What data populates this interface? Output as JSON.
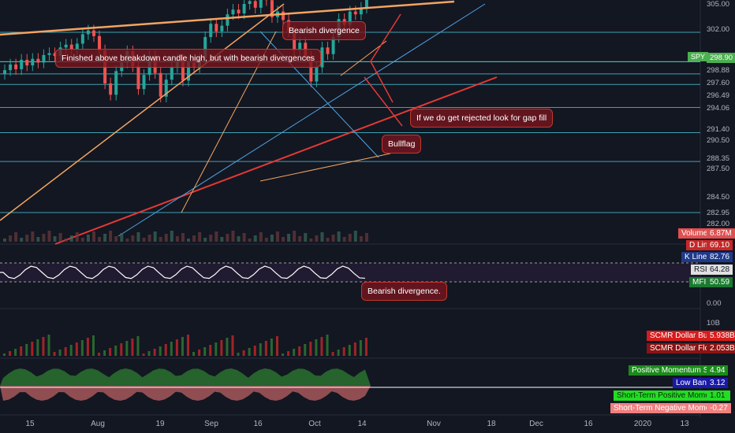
{
  "chart_data": {
    "type": "candlestick",
    "symbol": "SPY",
    "last_price": "298.90",
    "price_axis_ticks": [
      "305.00",
      "302.00",
      "298.90",
      "298.88",
      "297.60",
      "296.49",
      "294.06",
      "291.40",
      "290.50",
      "288.35",
      "287.50",
      "284.50",
      "282.95",
      "282.00"
    ],
    "price_levels": [
      302.0,
      298.9,
      298.88,
      297.6,
      296.49,
      294.06,
      291.4,
      288.35,
      282.95
    ],
    "date_ticks": [
      "15",
      "Aug",
      "19",
      "Sep",
      "16",
      "Oct",
      "14",
      "Nov",
      "18",
      "Dec",
      "16",
      "2020",
      "13"
    ],
    "lower_axis_ticks": [
      "0.00",
      "10B"
    ],
    "annotations": {
      "finished_above": "Finished above breakdown candle high, but with bearish divergences",
      "bearish_div_top": "Bearish divergence",
      "gap_fill": "If we do get rejected look for gap fill",
      "bullflag": "Bullflag",
      "bearish_div_rsi": "Bearish divergence."
    },
    "indicators": {
      "volume": {
        "label": "Volume",
        "value": "6.87M"
      },
      "d_line": {
        "label": "D Line",
        "value": "69.10"
      },
      "k_line": {
        "label": "K Line",
        "value": "82.76"
      },
      "rsi": {
        "label": "RSI",
        "value": "64.28"
      },
      "mfi": {
        "label": "MFI",
        "value": "50.59"
      },
      "dollar_buzz": {
        "label": "SCMR Dollar Buzz™",
        "value": "5.938B"
      },
      "dollar_flow": {
        "label": "SCMR Dollar Flow™",
        "value": "2.053B"
      },
      "pos_momentum": {
        "label": "Positive Momentum Score",
        "value": "4.94"
      },
      "low_band": {
        "label": "Low Band",
        "value": "3.12"
      },
      "st_pos_momentum": {
        "label": "Short-Term Positive Momentum",
        "value": "1.01"
      },
      "st_neg_momentum": {
        "label": "Short-Term Negative Momentum",
        "value": "-0.27"
      }
    },
    "colors": {
      "up": "#26a69a",
      "down": "#ef5350",
      "support": "#4dd0e1",
      "spy_level": "#4caf50",
      "trend_red": "#e53935",
      "trend_orange": "#f4a460"
    }
  }
}
